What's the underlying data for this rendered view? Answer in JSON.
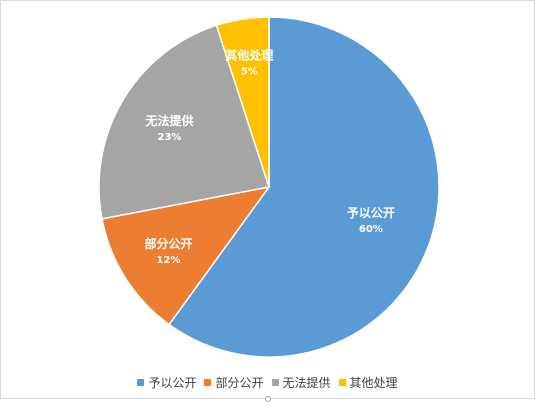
{
  "chart_data": {
    "type": "pie",
    "title": "",
    "categories": [
      "予以公开",
      "部分公开",
      "无法提供",
      "其他处理"
    ],
    "values": [
      60,
      12,
      23,
      5
    ],
    "value_labels": [
      "60%",
      "12%",
      "23%",
      "5%"
    ],
    "colors": [
      "#5b9bd5",
      "#ed7d31",
      "#a5a5a5",
      "#ffc000"
    ],
    "start_angle_deg": 0,
    "direction": "clockwise",
    "legend": {
      "position": "bottom",
      "entries": [
        "予以公开",
        "部分公开",
        "无法提供",
        "其他处理"
      ]
    }
  }
}
